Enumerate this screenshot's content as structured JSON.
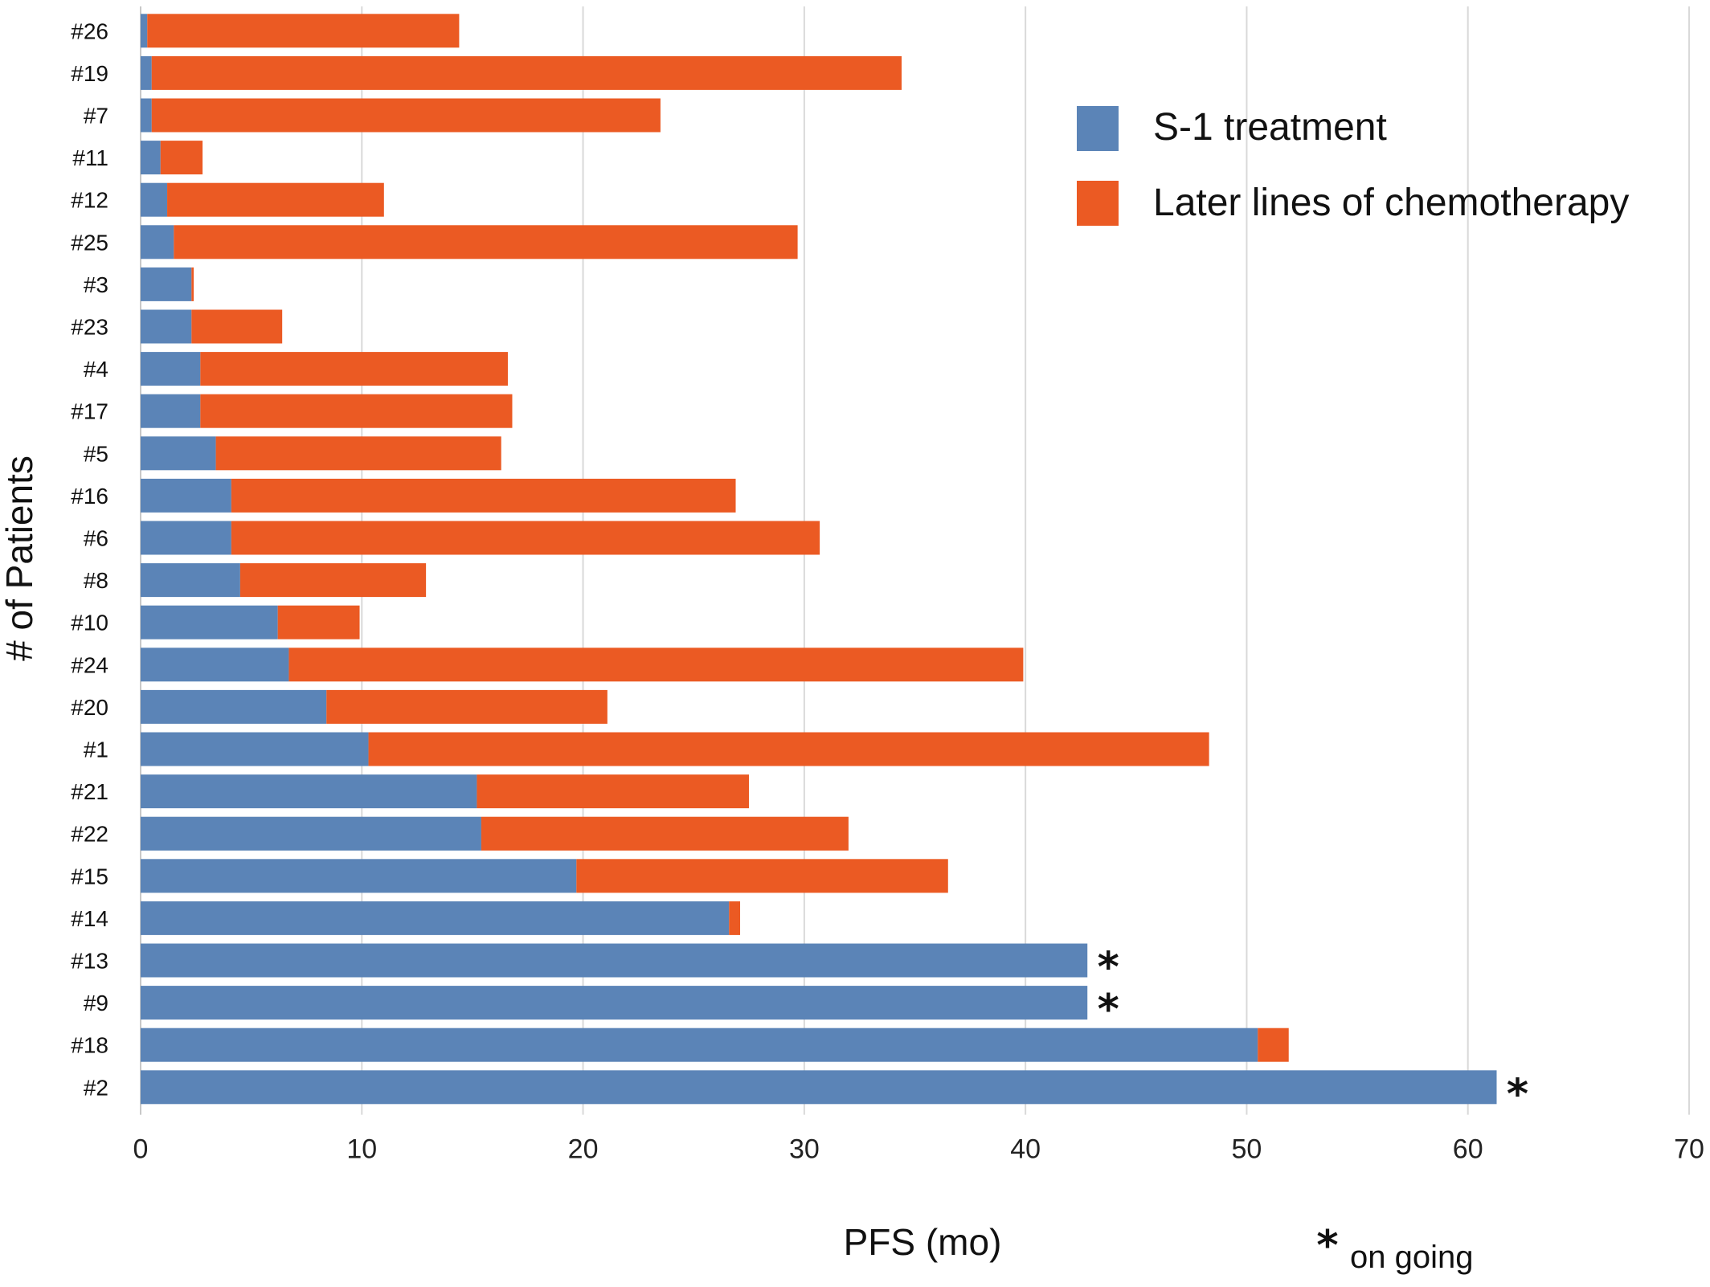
{
  "chart_data": {
    "type": "bar",
    "orientation": "horizontal",
    "stacked": true,
    "categories": [
      "#26",
      "#19",
      "#7",
      "#11",
      "#12",
      "#25",
      "#3",
      "#23",
      "#4",
      "#17",
      "#5",
      "#16",
      "#6",
      "#8",
      "#10",
      "#24",
      "#20",
      "#1",
      "#21",
      "#22",
      "#15",
      "#14",
      "#13",
      "#9",
      "#18",
      "#2"
    ],
    "series": [
      {
        "name": "S-1 treatment",
        "color": "#5b84b7",
        "values": [
          0.3,
          0.5,
          0.5,
          0.9,
          1.2,
          1.5,
          2.3,
          2.3,
          2.7,
          2.7,
          3.4,
          4.1,
          4.1,
          4.5,
          6.2,
          6.7,
          8.4,
          10.3,
          15.2,
          15.4,
          19.7,
          26.6,
          42.8,
          42.8,
          50.5,
          61.3
        ]
      },
      {
        "name": "Later lines of chemotherapy",
        "color": "#eb5a23",
        "values": [
          14.1,
          33.9,
          23.0,
          1.9,
          9.8,
          28.2,
          0.1,
          4.1,
          13.9,
          14.1,
          12.9,
          22.8,
          26.6,
          8.4,
          3.7,
          33.2,
          12.7,
          38.0,
          12.3,
          16.6,
          16.8,
          0.5,
          0,
          0,
          1.4,
          0
        ]
      }
    ],
    "ongoing": [
      "#13",
      "#9",
      "#2"
    ],
    "ongoing_marker": "*",
    "xlabel": "PFS (mo)",
    "ylabel": "# of Patients",
    "xlim": [
      0,
      70
    ],
    "xticks": [
      0,
      10,
      20,
      30,
      40,
      50,
      60,
      70
    ],
    "grid": "vertical",
    "legend_position": "top-right",
    "note": "on going"
  }
}
